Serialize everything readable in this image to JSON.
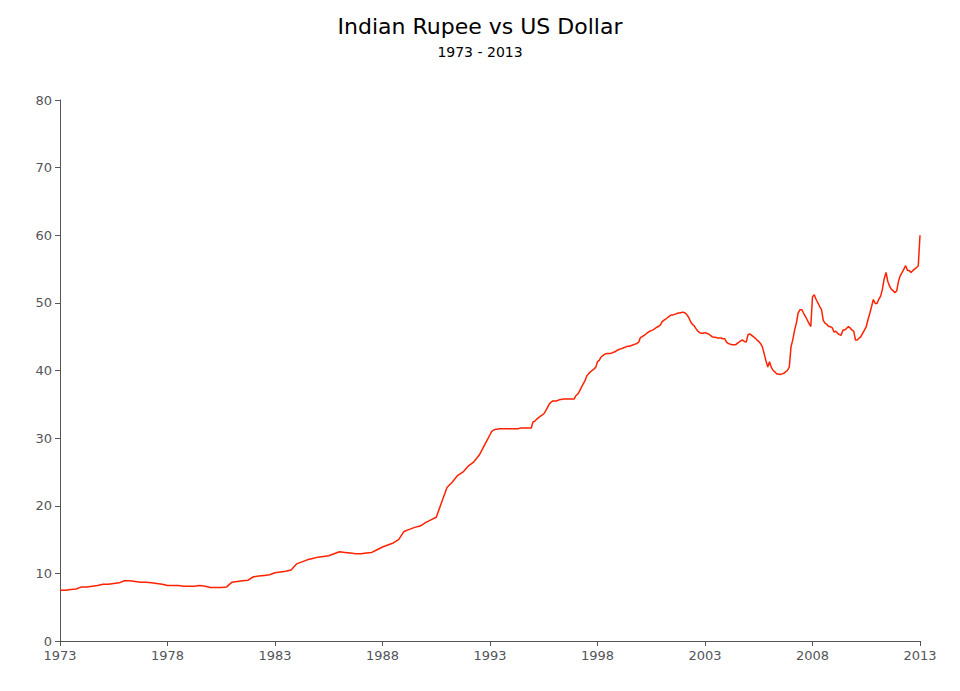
{
  "chart_data": {
    "type": "line",
    "title": "Indian Rupee vs US Dollar",
    "subtitle": "1973 - 2013",
    "color": "#ff2200",
    "xlim": [
      1973,
      2013
    ],
    "ylim": [
      0,
      80
    ],
    "xticks": [
      1973,
      1978,
      1983,
      1988,
      1993,
      1998,
      2003,
      2008,
      2013
    ],
    "yticks": [
      0,
      10,
      20,
      30,
      40,
      50,
      60,
      70,
      80
    ],
    "grid": false,
    "x": [
      1973.0,
      1973.25,
      1973.5,
      1973.75,
      1974.0,
      1974.25,
      1974.5,
      1974.75,
      1975.0,
      1975.25,
      1975.5,
      1975.75,
      1976.0,
      1976.25,
      1976.5,
      1976.75,
      1977.0,
      1977.25,
      1977.5,
      1977.75,
      1978.0,
      1978.25,
      1978.5,
      1978.75,
      1979.0,
      1979.25,
      1979.5,
      1979.75,
      1980.0,
      1980.25,
      1980.5,
      1980.75,
      1981.0,
      1981.25,
      1981.5,
      1981.75,
      1982.0,
      1982.25,
      1982.5,
      1982.75,
      1983.0,
      1983.25,
      1983.5,
      1983.75,
      1984.0,
      1984.25,
      1984.5,
      1984.75,
      1985.0,
      1985.25,
      1985.5,
      1985.75,
      1986.0,
      1986.25,
      1986.5,
      1986.75,
      1987.0,
      1987.25,
      1987.5,
      1987.75,
      1988.0,
      1988.25,
      1988.5,
      1988.75,
      1989.0,
      1989.25,
      1989.5,
      1989.75,
      1990.0,
      1990.25,
      1990.5,
      1990.75,
      1991.0,
      1991.25,
      1991.5,
      1991.75,
      1992.0,
      1992.25,
      1992.5,
      1992.75,
      1993.0,
      1993.08,
      1993.17,
      1993.25,
      1993.33,
      1993.42,
      1993.5,
      1993.58,
      1993.67,
      1993.75,
      1993.83,
      1993.92,
      1994.0,
      1994.08,
      1994.17,
      1994.25,
      1994.33,
      1994.42,
      1994.5,
      1994.58,
      1994.67,
      1994.75,
      1994.83,
      1994.92,
      1995.0,
      1995.08,
      1995.17,
      1995.25,
      1995.33,
      1995.42,
      1995.5,
      1995.58,
      1995.67,
      1995.75,
      1995.83,
      1995.92,
      1996.0,
      1996.08,
      1996.17,
      1996.25,
      1996.33,
      1996.42,
      1996.5,
      1996.58,
      1996.67,
      1996.75,
      1996.83,
      1996.92,
      1997.0,
      1997.08,
      1997.17,
      1997.25,
      1997.33,
      1997.42,
      1997.5,
      1997.58,
      1997.67,
      1997.75,
      1997.83,
      1997.92,
      1998.0,
      1998.08,
      1998.17,
      1998.25,
      1998.33,
      1998.42,
      1998.5,
      1998.58,
      1998.67,
      1998.75,
      1998.83,
      1998.92,
      1999.0,
      1999.08,
      1999.17,
      1999.25,
      1999.33,
      1999.42,
      1999.5,
      1999.58,
      1999.67,
      1999.75,
      1999.83,
      1999.92,
      2000.0,
      2000.08,
      2000.17,
      2000.25,
      2000.33,
      2000.42,
      2000.5,
      2000.58,
      2000.67,
      2000.75,
      2000.83,
      2000.92,
      2001.0,
      2001.08,
      2001.17,
      2001.25,
      2001.33,
      2001.42,
      2001.5,
      2001.58,
      2001.67,
      2001.75,
      2001.83,
      2001.92,
      2002.0,
      2002.08,
      2002.17,
      2002.25,
      2002.33,
      2002.42,
      2002.5,
      2002.58,
      2002.67,
      2002.75,
      2002.83,
      2002.92,
      2003.0,
      2003.08,
      2003.17,
      2003.25,
      2003.33,
      2003.42,
      2003.5,
      2003.58,
      2003.67,
      2003.75,
      2003.83,
      2003.92,
      2004.0,
      2004.08,
      2004.17,
      2004.25,
      2004.33,
      2004.42,
      2004.5,
      2004.58,
      2004.67,
      2004.75,
      2004.83,
      2004.92,
      2005.0,
      2005.08,
      2005.17,
      2005.25,
      2005.33,
      2005.42,
      2005.5,
      2005.58,
      2005.67,
      2005.75,
      2005.83,
      2005.92,
      2006.0,
      2006.08,
      2006.17,
      2006.25,
      2006.33,
      2006.42,
      2006.5,
      2006.58,
      2006.67,
      2006.75,
      2006.83,
      2006.92,
      2007.0,
      2007.08,
      2007.17,
      2007.25,
      2007.33,
      2007.42,
      2007.5,
      2007.58,
      2007.67,
      2007.75,
      2007.83,
      2007.92,
      2008.0,
      2008.08,
      2008.17,
      2008.25,
      2008.33,
      2008.42,
      2008.5,
      2008.58,
      2008.67,
      2008.75,
      2008.83,
      2008.92,
      2009.0,
      2009.08,
      2009.17,
      2009.25,
      2009.33,
      2009.42,
      2009.5,
      2009.58,
      2009.67,
      2009.75,
      2009.83,
      2009.92,
      2010.0,
      2010.08,
      2010.17,
      2010.25,
      2010.33,
      2010.42,
      2010.5,
      2010.58,
      2010.67,
      2010.75,
      2010.83,
      2010.92,
      2011.0,
      2011.08,
      2011.17,
      2011.25,
      2011.33,
      2011.42,
      2011.5,
      2011.58,
      2011.67,
      2011.75,
      2011.83,
      2011.92,
      2012.0,
      2012.08,
      2012.17,
      2012.25,
      2012.33,
      2012.42,
      2012.5,
      2012.58,
      2012.67,
      2012.75,
      2012.83,
      2012.92,
      2013.0
    ],
    "values": [
      7.5,
      7.5,
      7.6,
      7.7,
      8.0,
      8.0,
      8.1,
      8.2,
      8.4,
      8.4,
      8.5,
      8.6,
      8.9,
      8.9,
      8.8,
      8.7,
      8.7,
      8.6,
      8.5,
      8.4,
      8.2,
      8.2,
      8.2,
      8.1,
      8.1,
      8.1,
      8.2,
      8.1,
      7.9,
      7.9,
      7.9,
      8.0,
      8.7,
      8.8,
      8.9,
      9.0,
      9.5,
      9.6,
      9.7,
      9.8,
      10.1,
      10.2,
      10.3,
      10.5,
      11.4,
      11.7,
      12.0,
      12.2,
      12.4,
      12.5,
      12.6,
      12.9,
      13.2,
      13.1,
      13.0,
      12.9,
      12.9,
      13.0,
      13.1,
      13.5,
      13.9,
      14.2,
      14.5,
      15.0,
      16.2,
      16.5,
      16.8,
      17.0,
      17.5,
      17.9,
      18.3,
      20.5,
      22.7,
      23.5,
      24.5,
      25.0,
      25.9,
      26.5,
      27.5,
      29.0,
      30.5,
      31.0,
      31.2,
      31.3,
      31.3,
      31.4,
      31.4,
      31.4,
      31.4,
      31.4,
      31.4,
      31.4,
      31.4,
      31.4,
      31.4,
      31.4,
      31.4,
      31.5,
      31.5,
      31.5,
      31.5,
      31.5,
      31.5,
      31.5,
      32.4,
      32.5,
      32.8,
      33.0,
      33.2,
      33.4,
      33.6,
      34.0,
      34.5,
      35.0,
      35.3,
      35.5,
      35.5,
      35.5,
      35.6,
      35.7,
      35.7,
      35.8,
      35.8,
      35.8,
      35.8,
      35.8,
      35.8,
      35.8,
      36.3,
      36.5,
      37.0,
      37.5,
      38.0,
      38.5,
      39.2,
      39.5,
      39.8,
      40.0,
      40.2,
      40.5,
      41.3,
      41.5,
      42.0,
      42.2,
      42.4,
      42.5,
      42.5,
      42.5,
      42.6,
      42.7,
      42.8,
      43.0,
      43.1,
      43.2,
      43.3,
      43.4,
      43.5,
      43.6,
      43.6,
      43.7,
      43.8,
      43.9,
      44.0,
      44.2,
      44.9,
      45.0,
      45.2,
      45.4,
      45.6,
      45.8,
      45.9,
      46.0,
      46.2,
      46.4,
      46.5,
      46.7,
      47.2,
      47.4,
      47.6,
      47.8,
      48.0,
      48.2,
      48.2,
      48.3,
      48.4,
      48.5,
      48.5,
      48.6,
      48.6,
      48.5,
      48.2,
      47.8,
      47.2,
      46.8,
      46.6,
      46.2,
      45.8,
      45.6,
      45.5,
      45.5,
      45.6,
      45.5,
      45.4,
      45.2,
      45.0,
      44.9,
      44.9,
      44.8,
      44.8,
      44.8,
      44.7,
      44.7,
      44.2,
      44.0,
      43.9,
      43.8,
      43.8,
      43.8,
      44.0,
      44.2,
      44.4,
      44.5,
      44.3,
      44.2,
      45.3,
      45.4,
      45.2,
      45.0,
      44.8,
      44.5,
      44.3,
      44.0,
      43.5,
      42.5,
      41.5,
      40.5,
      41.3,
      40.5,
      40.0,
      39.8,
      39.5,
      39.5,
      39.4,
      39.5,
      39.6,
      39.8,
      40.0,
      40.5,
      43.5,
      44.5,
      46.0,
      47.0,
      48.5,
      49.0,
      49.0,
      48.5,
      48.0,
      47.5,
      47.0,
      46.5,
      50.9,
      51.2,
      50.5,
      50.0,
      49.5,
      49.0,
      47.4,
      47.0,
      46.8,
      46.5,
      46.5,
      46.3,
      45.7,
      45.8,
      45.5,
      45.3,
      45.2,
      46.0,
      46.0,
      46.2,
      46.5,
      46.3,
      46.0,
      45.8,
      44.5,
      44.5,
      44.8,
      45.0,
      45.5,
      46.0,
      46.5,
      47.5,
      48.5,
      49.5,
      50.5,
      49.9,
      49.9,
      50.5,
      51.0,
      52.0,
      53.5,
      54.5,
      53.2,
      52.5,
      52.0,
      51.8,
      51.5,
      51.8,
      53.2,
      54.0,
      54.5,
      55.0,
      55.5,
      54.8,
      54.8,
      54.5,
      54.8,
      55.0,
      55.2,
      55.5,
      60.0
    ]
  }
}
